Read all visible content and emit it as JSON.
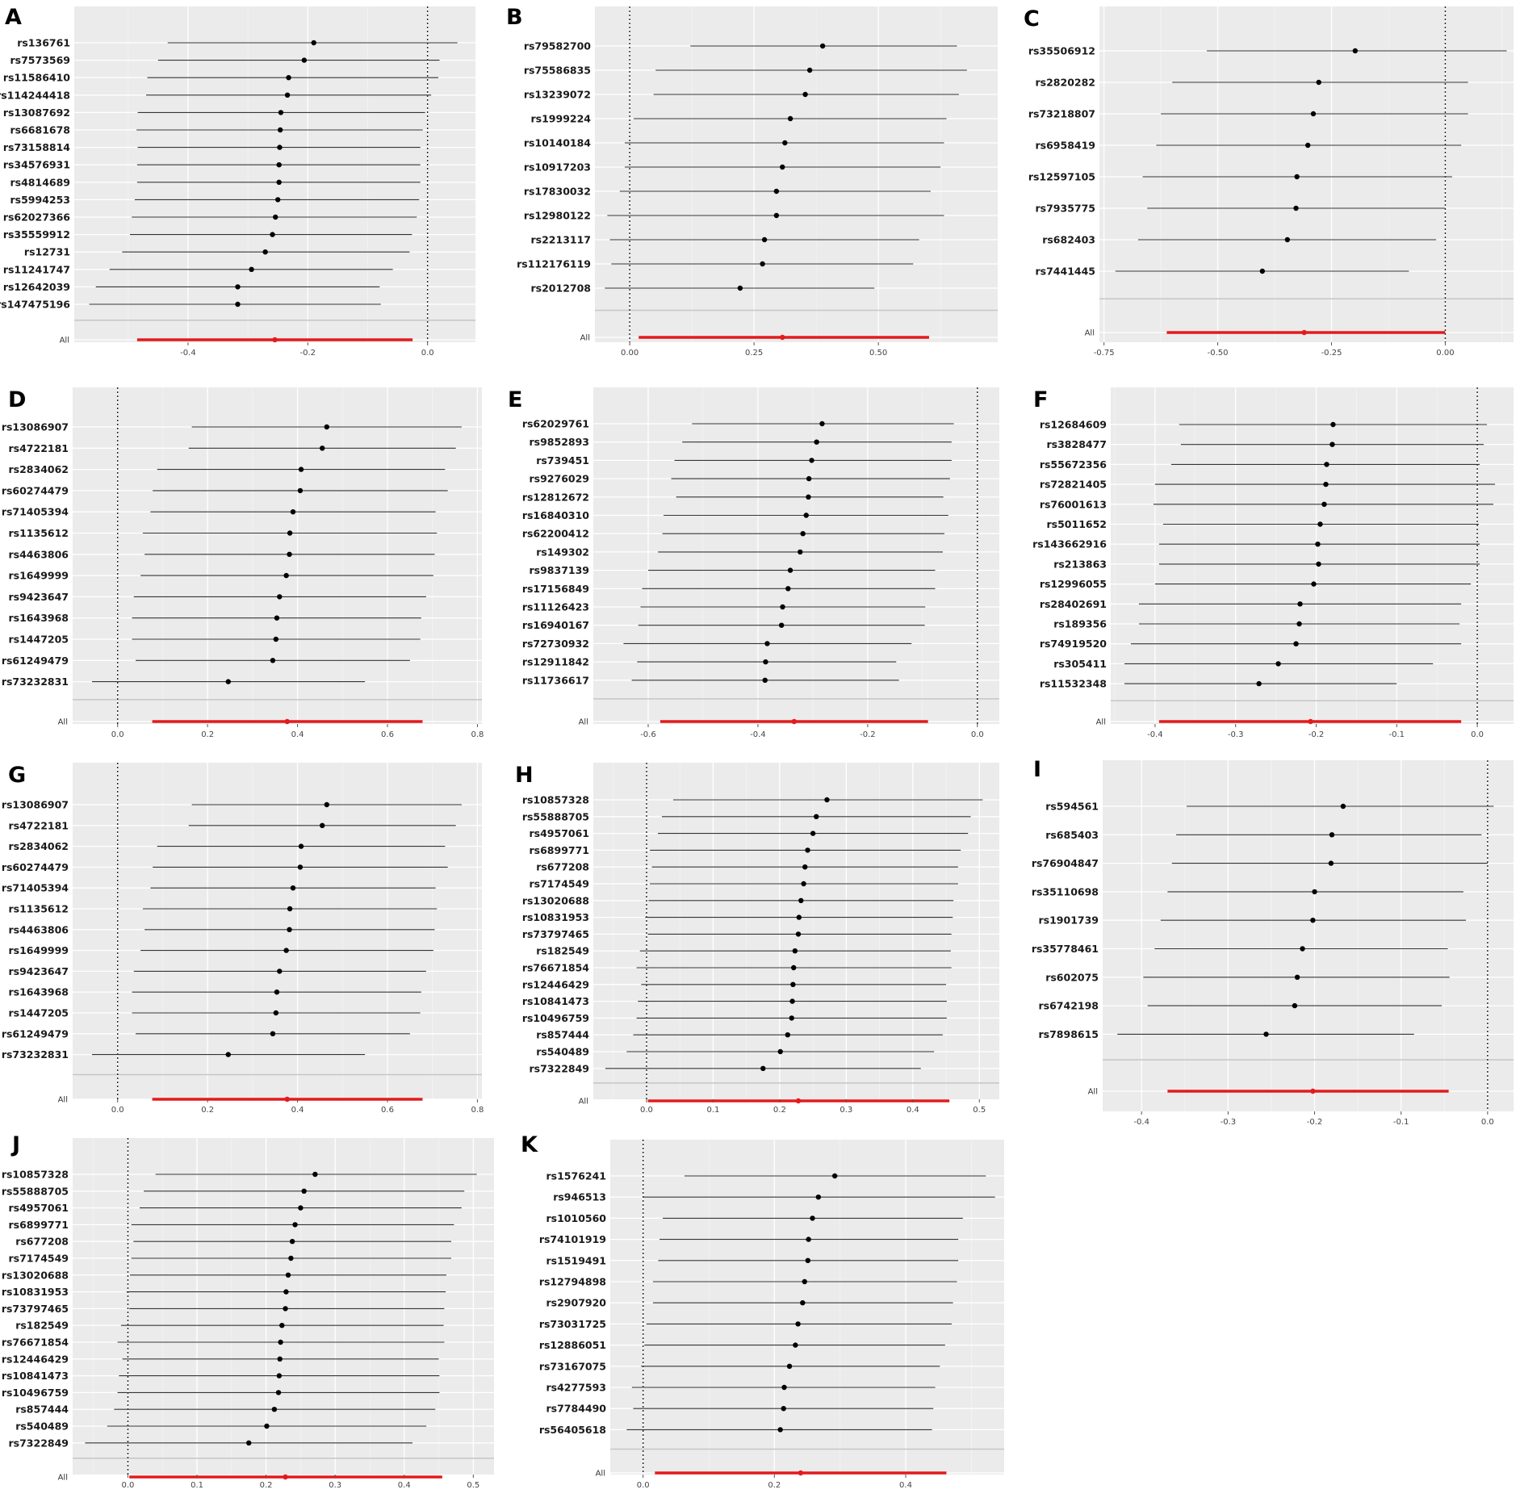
{
  "chart_data": [
    {
      "panel": "A",
      "type": "forest",
      "overall_label": "All",
      "xlim": [
        -0.59,
        0.08
      ],
      "xticks": [
        -0.4,
        -0.2,
        0.0
      ],
      "xtick_labels": [
        "-0.4",
        "-0.2",
        "0.0"
      ],
      "ref_x": 0,
      "snps": [
        "rs136761",
        "rs7573569",
        "rs11586410",
        "rs114244418",
        "rs13087692",
        "rs6681678",
        "rs73158814",
        "rs34576931",
        "rs4814689",
        "rs5994253",
        "rs62027366",
        "rs35559912",
        "rs12731",
        "rs11241747",
        "rs12642039",
        "rs147475196"
      ],
      "estimates": [
        -0.19,
        -0.206,
        -0.232,
        -0.234,
        -0.245,
        -0.246,
        -0.247,
        -0.248,
        -0.248,
        -0.25,
        -0.254,
        -0.259,
        -0.271,
        -0.294,
        -0.317,
        -0.317
      ],
      "lower": [
        -0.434,
        -0.45,
        -0.468,
        -0.47,
        -0.484,
        -0.486,
        -0.484,
        -0.485,
        -0.485,
        -0.489,
        -0.494,
        -0.497,
        -0.51,
        -0.531,
        -0.554,
        -0.565
      ],
      "upper": [
        0.05,
        0.02,
        0.018,
        0.006,
        -0.004,
        -0.008,
        -0.012,
        -0.012,
        -0.012,
        -0.014,
        -0.018,
        -0.026,
        -0.03,
        -0.058,
        -0.08,
        -0.078
      ],
      "overall": {
        "estimate": -0.255,
        "lower": -0.485,
        "upper": -0.025
      }
    },
    {
      "panel": "B",
      "type": "forest",
      "overall_label": "All",
      "xlim": [
        -0.07,
        0.74
      ],
      "xticks": [
        0.0,
        0.25,
        0.5
      ],
      "xtick_labels": [
        "0.00",
        "0.25",
        "0.50"
      ],
      "ref_x": 0,
      "snps": [
        "rs79582700",
        "rs75586835",
        "rs13239072",
        "rs1999224",
        "rs10140184",
        "rs10917203",
        "rs17830032",
        "rs12980122",
        "rs2213117",
        "rs112176119",
        "rs2012708"
      ],
      "estimates": [
        0.388,
        0.362,
        0.353,
        0.323,
        0.312,
        0.307,
        0.295,
        0.295,
        0.271,
        0.267,
        0.222
      ],
      "lower": [
        0.122,
        0.052,
        0.048,
        0.008,
        -0.01,
        -0.01,
        -0.02,
        -0.045,
        -0.04,
        -0.037,
        -0.05
      ],
      "upper": [
        0.658,
        0.678,
        0.662,
        0.637,
        0.632,
        0.625,
        0.605,
        0.632,
        0.582,
        0.57,
        0.492
      ],
      "overall": {
        "estimate": 0.307,
        "lower": 0.018,
        "upper": 0.602
      }
    },
    {
      "panel": "C",
      "type": "forest",
      "overall_label": "All",
      "xlim": [
        -0.76,
        0.15
      ],
      "xticks": [
        -0.75,
        -0.5,
        -0.25,
        0.0
      ],
      "xtick_labels": [
        "-0.75",
        "-0.50",
        "-0.25",
        "0.00"
      ],
      "ref_x": 0,
      "snps": [
        "rs35506912",
        "rs2820282",
        "rs73218807",
        "rs6958419",
        "rs12597105",
        "rs7935775",
        "rs682403",
        "rs7441445"
      ],
      "estimates": [
        -0.198,
        -0.278,
        -0.29,
        -0.302,
        -0.326,
        -0.328,
        -0.347,
        -0.402
      ],
      "lower": [
        -0.524,
        -0.6,
        -0.625,
        -0.635,
        -0.665,
        -0.655,
        -0.675,
        -0.725
      ],
      "upper": [
        0.135,
        0.05,
        0.05,
        0.035,
        0.015,
        0,
        -0.02,
        -0.08
      ],
      "overall": {
        "estimate": -0.31,
        "lower": -0.612,
        "upper": 0
      }
    },
    {
      "panel": "D",
      "type": "forest",
      "overall_label": "All",
      "xlim": [
        -0.1,
        0.81
      ],
      "xticks": [
        0.0,
        0.2,
        0.4,
        0.6,
        0.8
      ],
      "xtick_labels": [
        "0.0",
        "0.2",
        "0.4",
        "0.6",
        "0.8"
      ],
      "ref_x": 0,
      "snps": [
        "rs13086907",
        "rs4722181",
        "rs2834062",
        "rs60274479",
        "rs71405394",
        "rs1135612",
        "rs4463806",
        "rs1649999",
        "rs9423647",
        "rs1643968",
        "rs1447205",
        "rs61249479",
        "rs73232831"
      ],
      "estimates": [
        0.465,
        0.455,
        0.408,
        0.406,
        0.39,
        0.383,
        0.382,
        0.375,
        0.36,
        0.354,
        0.352,
        0.345,
        0.246
      ],
      "lower": [
        0.165,
        0.158,
        0.088,
        0.078,
        0.073,
        0.056,
        0.06,
        0.051,
        0.036,
        0.032,
        0.032,
        0.04,
        -0.057
      ],
      "upper": [
        0.765,
        0.752,
        0.728,
        0.734,
        0.707,
        0.71,
        0.705,
        0.702,
        0.686,
        0.675,
        0.673,
        0.65,
        0.55
      ],
      "overall": {
        "estimate": 0.377,
        "lower": 0.077,
        "upper": 0.678
      }
    },
    {
      "panel": "E",
      "type": "forest",
      "overall_label": "All",
      "xlim": [
        -0.7,
        0.04
      ],
      "xticks": [
        -0.6,
        -0.4,
        -0.2,
        0.0
      ],
      "xtick_labels": [
        "-0.6",
        "-0.4",
        "-0.2",
        "0.0"
      ],
      "ref_x": 0,
      "snps": [
        "rs62029761",
        "rs9852893",
        "rs739451",
        "rs9276029",
        "rs12812672",
        "rs16840310",
        "rs62200412",
        "rs149302",
        "rs9837139",
        "rs17156849",
        "rs11126423",
        "rs16940167",
        "rs72730932",
        "rs12911842",
        "rs11736617"
      ],
      "estimates": [
        -0.283,
        -0.293,
        -0.302,
        -0.307,
        -0.308,
        -0.312,
        -0.318,
        -0.323,
        -0.341,
        -0.345,
        -0.355,
        -0.357,
        -0.383,
        -0.386,
        -0.387
      ],
      "lower": [
        -0.52,
        -0.538,
        -0.552,
        -0.558,
        -0.549,
        -0.572,
        -0.574,
        -0.582,
        -0.6,
        -0.611,
        -0.614,
        -0.618,
        -0.645,
        -0.62,
        -0.63
      ],
      "upper": [
        -0.043,
        -0.047,
        -0.047,
        -0.05,
        -0.062,
        -0.053,
        -0.06,
        -0.063,
        -0.077,
        -0.077,
        -0.095,
        -0.096,
        -0.12,
        -0.148,
        -0.143
      ],
      "overall": {
        "estimate": -0.334,
        "lower": -0.578,
        "upper": -0.09
      }
    },
    {
      "panel": "F",
      "type": "forest",
      "overall_label": "All",
      "xlim": [
        -0.455,
        0.045
      ],
      "xticks": [
        -0.4,
        -0.3,
        -0.2,
        -0.1,
        0.0
      ],
      "xtick_labels": [
        "-0.4",
        "-0.3",
        "-0.2",
        "-0.1",
        "0.0"
      ],
      "ref_x": 0,
      "snps": [
        "rs12684609",
        "rs3828477",
        "rs55672356",
        "rs72821405",
        "rs76001613",
        "rs5011652",
        "rs143662916",
        "rs213863",
        "rs12996055",
        "rs28402691",
        "rs189356",
        "rs74919520",
        "rs305411",
        "rs11532348"
      ],
      "estimates": [
        -0.179,
        -0.18,
        -0.187,
        -0.188,
        -0.19,
        -0.195,
        -0.198,
        -0.197,
        -0.203,
        -0.22,
        -0.221,
        -0.225,
        -0.247,
        -0.271
      ],
      "lower": [
        -0.37,
        -0.368,
        -0.38,
        -0.4,
        -0.402,
        -0.39,
        -0.395,
        -0.395,
        -0.4,
        -0.42,
        -0.42,
        -0.43,
        -0.438,
        -0.438
      ],
      "upper": [
        0.012,
        0.008,
        0.003,
        0.022,
        0.02,
        0.002,
        0.003,
        0.003,
        -0.008,
        -0.02,
        -0.022,
        -0.02,
        -0.055,
        -0.1
      ],
      "overall": {
        "estimate": -0.207,
        "lower": -0.395,
        "upper": -0.02
      }
    },
    {
      "panel": "G",
      "type": "forest",
      "overall_label": "All",
      "xlim": [
        -0.1,
        0.81
      ],
      "xticks": [
        0.0,
        0.2,
        0.4,
        0.6,
        0.8
      ],
      "xtick_labels": [
        "0.0",
        "0.2",
        "0.4",
        "0.6",
        "0.8"
      ],
      "ref_x": 0,
      "snps": [
        "rs13086907",
        "rs4722181",
        "rs2834062",
        "rs60274479",
        "rs71405394",
        "rs1135612",
        "rs4463806",
        "rs1649999",
        "rs9423647",
        "rs1643968",
        "rs1447205",
        "rs61249479",
        "rs73232831"
      ],
      "estimates": [
        0.465,
        0.455,
        0.408,
        0.406,
        0.39,
        0.383,
        0.382,
        0.375,
        0.36,
        0.354,
        0.352,
        0.345,
        0.246
      ],
      "lower": [
        0.165,
        0.158,
        0.088,
        0.078,
        0.073,
        0.056,
        0.06,
        0.051,
        0.036,
        0.032,
        0.032,
        0.04,
        -0.057
      ],
      "upper": [
        0.765,
        0.752,
        0.728,
        0.734,
        0.707,
        0.71,
        0.705,
        0.702,
        0.686,
        0.675,
        0.673,
        0.65,
        0.55
      ],
      "overall": {
        "estimate": 0.377,
        "lower": 0.077,
        "upper": 0.678
      }
    },
    {
      "panel": "H",
      "type": "forest",
      "overall_label": "All",
      "xlim": [
        -0.08,
        0.53
      ],
      "xticks": [
        0.0,
        0.1,
        0.2,
        0.3,
        0.4,
        0.5
      ],
      "xtick_labels": [
        "0.0",
        "0.1",
        "0.2",
        "0.3",
        "0.4",
        "0.5"
      ],
      "ref_x": 0,
      "snps": [
        "rs10857328",
        "rs55888705",
        "rs4957061",
        "rs6899771",
        "rs677208",
        "rs7174549",
        "rs13020688",
        "rs10831953",
        "rs73797465",
        "rs182549",
        "rs76671854",
        "rs12446429",
        "rs10841473",
        "rs10496759",
        "rs857444",
        "rs540489",
        "rs7322849"
      ],
      "estimates": [
        0.271,
        0.255,
        0.25,
        0.242,
        0.238,
        0.236,
        0.232,
        0.229,
        0.228,
        0.223,
        0.221,
        0.22,
        0.219,
        0.218,
        0.212,
        0.201,
        0.175
      ],
      "lower": [
        0.04,
        0.023,
        0.017,
        0.005,
        0.008,
        0.005,
        0.003,
        -0.002,
        0.002,
        -0.01,
        -0.015,
        -0.008,
        -0.013,
        -0.015,
        -0.02,
        -0.03,
        -0.062
      ],
      "upper": [
        0.505,
        0.487,
        0.483,
        0.472,
        0.468,
        0.468,
        0.461,
        0.46,
        0.458,
        0.457,
        0.458,
        0.45,
        0.451,
        0.451,
        0.445,
        0.432,
        0.412
      ],
      "overall": {
        "estimate": 0.228,
        "lower": 0.002,
        "upper": 0.455
      }
    },
    {
      "panel": "I",
      "type": "forest",
      "overall_label": "All",
      "xlim": [
        -0.445,
        0.03
      ],
      "xticks": [
        -0.4,
        -0.3,
        -0.2,
        -0.1,
        0.0
      ],
      "xtick_labels": [
        "-0.4",
        "-0.3",
        "-0.2",
        "-0.1",
        "0.0"
      ],
      "ref_x": 0,
      "snps": [
        "rs594561",
        "rs685403",
        "rs76904847",
        "rs35110698",
        "rs1901739",
        "rs35778461",
        "rs602075",
        "rs6742198",
        "rs7898615"
      ],
      "estimates": [
        -0.167,
        -0.18,
        -0.181,
        -0.2,
        -0.202,
        -0.214,
        -0.22,
        -0.223,
        -0.256
      ],
      "lower": [
        -0.348,
        -0.36,
        -0.365,
        -0.37,
        -0.378,
        -0.385,
        -0.398,
        -0.393,
        -0.428
      ],
      "upper": [
        0.007,
        -0.007,
        0,
        -0.028,
        -0.025,
        -0.046,
        -0.044,
        -0.053,
        -0.085
      ],
      "overall": {
        "estimate": -0.202,
        "lower": -0.37,
        "upper": -0.045
      }
    },
    {
      "panel": "J",
      "type": "forest",
      "overall_label": "All",
      "xlim": [
        -0.08,
        0.53
      ],
      "xticks": [
        0.0,
        0.1,
        0.2,
        0.3,
        0.4,
        0.5
      ],
      "xtick_labels": [
        "0.0",
        "0.1",
        "0.2",
        "0.3",
        "0.4",
        "0.5"
      ],
      "ref_x": 0,
      "snps": [
        "rs10857328",
        "rs55888705",
        "rs4957061",
        "rs6899771",
        "rs677208",
        "rs7174549",
        "rs13020688",
        "rs10831953",
        "rs73797465",
        "rs182549",
        "rs76671854",
        "rs12446429",
        "rs10841473",
        "rs10496759",
        "rs857444",
        "rs540489",
        "rs7322849"
      ],
      "estimates": [
        0.271,
        0.255,
        0.25,
        0.242,
        0.238,
        0.236,
        0.232,
        0.229,
        0.228,
        0.223,
        0.221,
        0.22,
        0.219,
        0.218,
        0.212,
        0.201,
        0.175
      ],
      "lower": [
        0.04,
        0.023,
        0.017,
        0.005,
        0.008,
        0.005,
        0.003,
        -0.002,
        0.002,
        -0.01,
        -0.015,
        -0.008,
        -0.013,
        -0.015,
        -0.02,
        -0.03,
        -0.062
      ],
      "upper": [
        0.505,
        0.487,
        0.483,
        0.472,
        0.468,
        0.468,
        0.461,
        0.46,
        0.458,
        0.457,
        0.458,
        0.45,
        0.451,
        0.451,
        0.445,
        0.432,
        0.412
      ],
      "overall": {
        "estimate": 0.228,
        "lower": 0.002,
        "upper": 0.455
      }
    },
    {
      "panel": "K",
      "type": "forest",
      "overall_label": "All",
      "xlim": [
        -0.05,
        0.55
      ],
      "xticks": [
        0.0,
        0.2,
        0.4
      ],
      "xtick_labels": [
        "0.0",
        "0.2",
        "0.4"
      ],
      "ref_x": 0,
      "snps": [
        "rs1576241",
        "rs946513",
        "rs1010560",
        "rs74101919",
        "rs1519491",
        "rs12794898",
        "rs2907920",
        "rs73031725",
        "rs12886051",
        "rs73167075",
        "rs4277593",
        "rs7784490",
        "rs56405618"
      ],
      "estimates": [
        0.292,
        0.267,
        0.258,
        0.252,
        0.251,
        0.246,
        0.243,
        0.236,
        0.232,
        0.223,
        0.215,
        0.214,
        0.209
      ],
      "lower": [
        0.063,
        0,
        0.03,
        0.025,
        0.023,
        0.015,
        0.015,
        0.005,
        0.002,
        -0.003,
        -0.017,
        -0.015,
        -0.025
      ],
      "upper": [
        0.522,
        0.536,
        0.487,
        0.48,
        0.48,
        0.478,
        0.472,
        0.47,
        0.46,
        0.452,
        0.445,
        0.442,
        0.44
      ],
      "overall": {
        "estimate": 0.24,
        "lower": 0.018,
        "upper": 0.462
      }
    }
  ]
}
